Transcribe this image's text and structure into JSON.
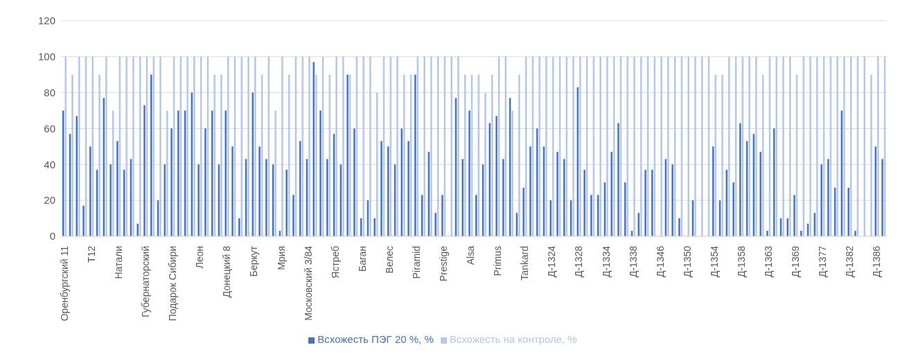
{
  "chart_data": {
    "type": "bar",
    "categories": [
      "Оренбургский 11",
      null,
      null,
      null,
      "T12",
      null,
      null,
      null,
      "Натали",
      null,
      null,
      null,
      "Губернаторский",
      null,
      null,
      null,
      "Подарок Сибири",
      null,
      null,
      null,
      "Леон",
      null,
      null,
      null,
      "Донецкий 8",
      null,
      null,
      null,
      "Беркут",
      null,
      null,
      null,
      "Мрия",
      null,
      null,
      null,
      "Московский 3/84",
      null,
      null,
      null,
      "Ястреб",
      null,
      null,
      null,
      "Баган",
      null,
      null,
      null,
      "Велес",
      null,
      null,
      null,
      "Piramid",
      null,
      null,
      null,
      "Prestige",
      null,
      null,
      null,
      "Alsa",
      null,
      null,
      null,
      "Primus",
      null,
      null,
      null,
      "Tankard",
      null,
      null,
      null,
      "Д-1324",
      null,
      null,
      null,
      "Д-1328",
      null,
      null,
      null,
      "Д-1334",
      null,
      null,
      null,
      "Д-1338",
      null,
      null,
      null,
      "Д-1346",
      null,
      null,
      null,
      "Д-1350",
      null,
      null,
      null,
      "Д-1354",
      null,
      null,
      null,
      "Д-1358",
      null,
      null,
      null,
      "Д-1363",
      null,
      null,
      null,
      "Д-1369",
      null,
      null,
      null,
      "Д-1377",
      null,
      null,
      null,
      "Д-1382",
      null,
      null,
      null,
      "Д-1386",
      null
    ],
    "series": [
      {
        "name": "Всхожесть ПЭГ 20 %, %",
        "color": "#4472c4",
        "values": [
          70,
          57,
          67,
          17,
          50,
          37,
          77,
          40,
          53,
          37,
          43,
          7,
          73,
          90,
          20,
          40,
          60,
          70,
          70,
          80,
          40,
          60,
          70,
          40,
          70,
          50,
          10,
          43,
          80,
          50,
          43,
          40,
          3,
          37,
          23,
          53,
          43,
          97,
          70,
          43,
          57,
          40,
          90,
          60,
          10,
          20,
          10,
          53,
          50,
          40,
          60,
          53,
          90,
          23,
          47,
          13,
          23,
          0,
          77,
          43,
          70,
          23,
          40,
          63,
          67,
          43,
          77,
          13,
          27,
          50,
          60,
          50,
          20,
          47,
          43,
          20,
          83,
          37,
          23,
          23,
          30,
          47,
          63,
          30,
          3,
          13,
          37,
          37,
          0,
          43,
          40,
          10,
          0,
          20,
          0,
          0,
          50,
          20,
          37,
          30,
          63,
          53,
          57,
          47,
          3,
          60,
          10,
          10,
          23,
          3,
          7,
          13,
          40,
          43,
          27,
          70,
          27,
          3,
          0,
          0,
          50,
          43
        ]
      },
      {
        "name": "Всхожесть на контроле, %",
        "color": "#b4c7e7",
        "values": [
          100,
          90,
          100,
          100,
          100,
          90,
          100,
          70,
          100,
          100,
          100,
          100,
          100,
          100,
          100,
          70,
          100,
          100,
          100,
          100,
          100,
          100,
          90,
          90,
          100,
          100,
          100,
          100,
          100,
          90,
          100,
          70,
          100,
          90,
          100,
          100,
          100,
          90,
          100,
          90,
          100,
          100,
          90,
          100,
          100,
          100,
          80,
          100,
          100,
          100,
          90,
          90,
          100,
          100,
          100,
          100,
          100,
          100,
          100,
          90,
          90,
          90,
          80,
          90,
          100,
          100,
          70,
          90,
          100,
          100,
          100,
          100,
          100,
          100,
          100,
          100,
          100,
          100,
          100,
          100,
          100,
          100,
          100,
          100,
          100,
          100,
          100,
          100,
          100,
          100,
          100,
          100,
          100,
          100,
          100,
          100,
          90,
          90,
          100,
          100,
          100,
          100,
          100,
          90,
          100,
          100,
          100,
          100,
          90,
          100,
          100,
          100,
          100,
          100,
          100,
          100,
          100,
          100,
          100,
          90,
          100,
          100
        ]
      }
    ],
    "ylim": [
      0,
      120
    ],
    "yticks": [
      0,
      20,
      40,
      60,
      80,
      100,
      120
    ],
    "grid": "y",
    "legend": "bottom"
  }
}
